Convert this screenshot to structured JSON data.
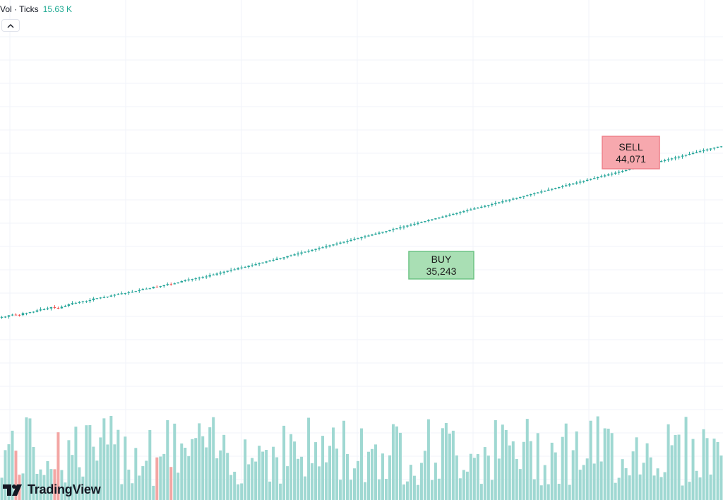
{
  "legend": {
    "label": "Vol · Ticks",
    "value": "15.63 K",
    "collapse_icon": "chevron-up-icon"
  },
  "brand": {
    "name": "TradingView",
    "logo_icon": "tradingview-logo-icon"
  },
  "colors": {
    "up": "#26a69a",
    "down": "#ef5350",
    "vol_up": "#9fd8d2",
    "vol_down": "#f3a6a4",
    "grid": "#f0f3fa",
    "buy_bg": "#a9dfb4",
    "buy_border": "#6cc383",
    "sell_bg": "#f7a8ae",
    "sell_border": "#ee7f89"
  },
  "chart_data": {
    "type": "candlestick",
    "grid": true,
    "series": [
      {
        "name": "price",
        "close": [
          31680,
          31702,
          31789,
          31767,
          31693,
          31740,
          31796,
          31722,
          31621,
          31674,
          31683,
          31596,
          31629,
          31627,
          31733,
          31675,
          31594,
          31597,
          31645,
          31581,
          31584,
          31615,
          31583,
          31575,
          31491,
          31554,
          31528,
          31476,
          31495,
          31468,
          31561,
          31518,
          31475,
          31466,
          31440,
          31414,
          31446,
          31423,
          31343,
          31406,
          31381,
          31381,
          31437,
          31302,
          31288,
          31323,
          31362,
          31374,
          31391,
          31287,
          31356,
          31423,
          31363,
          31476,
          31429,
          31353,
          31378,
          31349,
          31294,
          31182,
          31084,
          31142,
          31103,
          31083,
          31053,
          31036,
          31092,
          31070,
          31094,
          31005,
          31025,
          31089,
          30913,
          31059,
          31085,
          30998,
          30997,
          30957,
          31018,
          31021,
          30904,
          30931,
          30988,
          31001,
          31028,
          30962,
          31008,
          31050,
          30994,
          31001,
          30868,
          30891,
          30941,
          30869,
          31007,
          30976,
          31016,
          31127,
          31033,
          31111,
          31117,
          31062,
          31024,
          31064,
          31048,
          31017,
          31027,
          30881,
          30815,
          30905,
          30815,
          30825,
          30843,
          30955,
          30901,
          30916,
          30904,
          30812,
          30853,
          30869,
          30840,
          30897,
          30835,
          30943,
          30957,
          30921,
          30836,
          30939,
          31004,
          30900,
          30832,
          30869,
          30814,
          30801,
          30836,
          31106,
          31053,
          31108,
          31166,
          31204,
          31175,
          31177,
          31126,
          31126,
          31183,
          31242,
          31229,
          31175,
          31111,
          31119,
          31163,
          31114,
          31070,
          31066,
          31069,
          31189,
          31224,
          31277,
          31311,
          31230,
          31212,
          31254,
          31232,
          31232,
          31225,
          31227,
          31144,
          31098,
          31092,
          31207,
          31319,
          31262,
          31260,
          31183,
          31206,
          31236,
          31255,
          31234,
          31292,
          31328,
          31392,
          31400,
          31431,
          31383,
          31389,
          31358,
          31316,
          31346,
          31400,
          31416,
          31368,
          31367,
          31389,
          31395,
          31511,
          31548,
          31641,
          31650,
          31670,
          31735,
          31829,
          31849,
          31837,
          31962,
          32004,
          31906,
          31910,
          31946,
          32080,
          32033,
          32035,
          31995,
          32061,
          32004,
          31965,
          32063,
          32035,
          32002,
          31956,
          31932,
          31923,
          31996,
          31874,
          31860,
          31852,
          31937,
          31880,
          31790,
          31807,
          31836,
          31824,
          31819,
          31777,
          31706,
          31835,
          31884,
          31949,
          31853,
          31861,
          31928,
          31936,
          31849,
          31851,
          31870,
          31861,
          31873,
          31968,
          32173,
          32187,
          32194,
          32310,
          32345,
          32466,
          32574,
          32654,
          32687,
          32845,
          32926,
          32992,
          33025,
          33126,
          33071,
          33212,
          33156,
          33292,
          33334,
          33440,
          33577,
          33678,
          33805,
          33902,
          33922,
          33884,
          33895,
          33936,
          33890,
          33958,
          34017,
          34062,
          34000,
          34015,
          34147,
          34098,
          34065,
          34036,
          34098,
          34183,
          34201,
          34186,
          34294,
          34268,
          34278,
          34362,
          34433,
          34468,
          34439,
          34477,
          34503,
          34584,
          34697,
          34742,
          34812,
          34829,
          34843,
          34919,
          34953,
          34945,
          34930,
          35037,
          35054,
          35087,
          35111,
          35185,
          35233,
          35243,
          35292,
          35363,
          35321,
          35297,
          35377,
          35434,
          35512,
          35578,
          35593,
          35637,
          35678,
          35693,
          35742,
          35826,
          35847,
          35879,
          35901,
          35930,
          35991,
          36028,
          36067,
          36109,
          36120,
          36159,
          36189,
          36234,
          36280,
          36339,
          36362,
          36383,
          36464,
          36456,
          36502,
          36554,
          36609,
          36603,
          36650,
          36698,
          36772,
          36814,
          36860,
          36888,
          36921,
          36958,
          37002,
          37023,
          37092,
          37126,
          37179,
          37230,
          37281,
          37330,
          37372,
          37407,
          37466,
          37507,
          37541,
          37601,
          37635,
          37689,
          37736,
          37781,
          37836,
          37885,
          37922,
          37984,
          38005,
          38061,
          38127,
          38169,
          38219,
          38268,
          38324,
          38364,
          38409,
          38465,
          38517,
          38562,
          38602,
          38658,
          38707,
          38758,
          38808,
          38855,
          38905,
          38955,
          39002,
          39054,
          39099,
          39146,
          39196,
          39242,
          39294,
          39344,
          39394,
          39440,
          39486,
          39536,
          39586,
          39632,
          39681,
          39732,
          39781,
          39828,
          39878,
          39928,
          39976,
          40024,
          40073,
          40122,
          40172,
          40218,
          40267,
          40316,
          40366,
          40413,
          40461,
          40510,
          40560,
          40606,
          40656,
          40704,
          40752,
          40800,
          40849,
          40898,
          40947,
          40995,
          41043,
          41092,
          41141,
          41190,
          41238,
          41288,
          41335,
          41384,
          41432,
          41481,
          41530,
          41578,
          41626,
          41675,
          41723,
          41772,
          41821,
          41869,
          41918,
          41966,
          42015,
          42064,
          42112,
          42160,
          42209,
          42258,
          42306,
          42355,
          42404,
          42452,
          42500,
          42549,
          42597,
          42646,
          42695,
          42743,
          42792,
          42841,
          42888,
          42937,
          42986,
          43034,
          43083,
          43131,
          43180,
          43228,
          43277,
          43326,
          43374,
          43422,
          43471,
          43520,
          43568,
          43617,
          43665,
          43714,
          43762,
          43811,
          43860,
          43908,
          43957,
          44005,
          44054,
          44071
        ]
      }
    ],
    "annotations": [
      {
        "type": "buy",
        "label": "BUY",
        "price": "35,243"
      },
      {
        "type": "sell",
        "label": "SELL",
        "price": "44,071"
      }
    ]
  }
}
